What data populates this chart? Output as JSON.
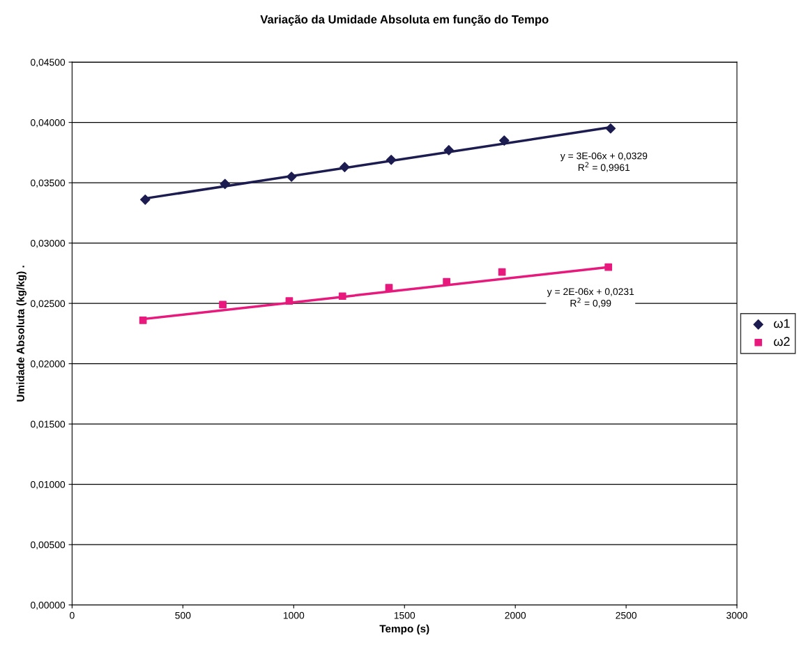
{
  "chart_data": {
    "type": "scatter",
    "title": "Variação da Umidade Absoluta em função do Tempo",
    "xlabel": "Tempo (s)",
    "ylabel": "Umidade Absoluta (kg/kg) .",
    "xlim": [
      0,
      3000
    ],
    "xticks": [
      0,
      500,
      1000,
      1500,
      2000,
      2500,
      3000
    ],
    "ylim": [
      0,
      0.045
    ],
    "yticks": [
      {
        "value": 0,
        "label": "0,00000"
      },
      {
        "value": 0.005,
        "label": "0,00500"
      },
      {
        "value": 0.01,
        "label": "0,01000"
      },
      {
        "value": 0.015,
        "label": "0,01500"
      },
      {
        "value": 0.02,
        "label": "0,02000"
      },
      {
        "value": 0.025,
        "label": "0,02500"
      },
      {
        "value": 0.03,
        "label": "0,03000"
      },
      {
        "value": 0.035,
        "label": "0,03500"
      },
      {
        "value": 0.04,
        "label": "0,04000"
      },
      {
        "value": 0.045,
        "label": "0,04500"
      }
    ],
    "grid": "y",
    "legend": "right",
    "series": [
      {
        "name": "ω1",
        "marker": "diamond",
        "color": "#1c1c50",
        "x": [
          330,
          690,
          990,
          1230,
          1440,
          1700,
          1950,
          2430
        ],
        "values": [
          0.0336,
          0.0349,
          0.0355,
          0.0363,
          0.0369,
          0.0377,
          0.0385,
          0.0395
        ]
      },
      {
        "name": "ω2",
        "marker": "square",
        "color": "#e8197c",
        "x": [
          320,
          680,
          980,
          1220,
          1430,
          1690,
          1940,
          2420
        ],
        "values": [
          0.0236,
          0.0249,
          0.0252,
          0.0256,
          0.0263,
          0.0268,
          0.0276,
          0.028
        ]
      },
      {
        "type": "line",
        "color": "#1c1c50",
        "x": [
          330,
          2430
        ],
        "values": [
          0.0337,
          0.0396
        ]
      },
      {
        "type": "line",
        "color": "#e8197c",
        "x": [
          320,
          2420
        ],
        "values": [
          0.0237,
          0.028
        ]
      }
    ],
    "annotations": [
      "y = 3E-06x + 0,0329\nR$^{2}$ = 0,9961",
      "y = 2E-06x + 0,0231\nR$^{2}$ = 0,99"
    ]
  }
}
